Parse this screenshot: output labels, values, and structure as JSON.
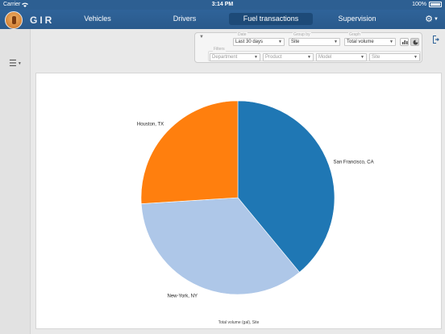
{
  "status_bar": {
    "carrier": "Carrier",
    "time": "3:14 PM",
    "battery": "100%"
  },
  "app": {
    "brand": "GIR"
  },
  "nav": {
    "tabs": [
      {
        "label": "Vehicles",
        "active": false
      },
      {
        "label": "Drivers",
        "active": false
      },
      {
        "label": "Fuel transactions",
        "active": true
      },
      {
        "label": "Supervision",
        "active": false
      }
    ]
  },
  "filters": {
    "date_label": "Date",
    "date_value": "Last 30 days",
    "group_by_label": "Group by",
    "group_by_value": "Site",
    "graph_label": "Graph",
    "graph_value": "Total volume",
    "filters_label": "Filters",
    "department_placeholder": "Department",
    "product_placeholder": "Product",
    "model_placeholder": "Model",
    "site_placeholder": "Site"
  },
  "icons": {
    "logo": "fuel-drop-logo",
    "settings": "gear-icon",
    "menu": "hamburger-menu-icon",
    "bar_chart": "bar-chart-icon",
    "pie_chart": "pie-chart-icon",
    "export": "logout-export-icon",
    "wifi": "wifi-icon"
  },
  "colors": {
    "navbar": "#2f6399",
    "active_tab": "#1d4a78"
  },
  "chart_data": {
    "type": "pie",
    "title": "Total volume (gal), Site",
    "categories": [
      "San Francisco, CA",
      "New-York, NY",
      "Houston, TX"
    ],
    "values": [
      39,
      35,
      26
    ],
    "colors": [
      "#1f77b4",
      "#aec7e8",
      "#ff7f0e"
    ],
    "legend": "none"
  }
}
